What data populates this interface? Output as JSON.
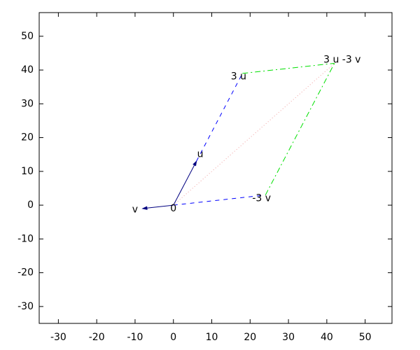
{
  "chart_data": {
    "type": "vector",
    "xlim": [
      -35,
      57
    ],
    "ylim": [
      -35,
      57
    ],
    "xticks": [
      -30,
      -20,
      -10,
      0,
      10,
      20,
      30,
      40,
      50
    ],
    "yticks": [
      -30,
      -20,
      -10,
      0,
      10,
      20,
      30,
      40,
      50
    ],
    "series": [
      {
        "color": "#000080",
        "style": "solid",
        "arrow": true,
        "x": [
          0,
          6
        ],
        "y": [
          0,
          13
        ]
      },
      {
        "color": "#000080",
        "style": "solid",
        "arrow": true,
        "x": [
          0,
          -8
        ],
        "y": [
          0,
          -1
        ]
      },
      {
        "color": "#0000ff",
        "style": "dashed",
        "arrow": false,
        "x": [
          6,
          18
        ],
        "y": [
          13,
          39
        ]
      },
      {
        "color": "#0000ff",
        "style": "dashed",
        "arrow": false,
        "x": [
          0,
          24
        ],
        "y": [
          0,
          3
        ]
      },
      {
        "color": "#00e000",
        "style": "dashdot",
        "arrow": false,
        "x": [
          18,
          42
        ],
        "y": [
          39,
          42
        ]
      },
      {
        "color": "#00e000",
        "style": "dashdot",
        "arrow": false,
        "x": [
          24,
          42
        ],
        "y": [
          3,
          42
        ]
      },
      {
        "color": "#f0a0a0",
        "style": "dotted",
        "arrow": false,
        "x": [
          0,
          42
        ],
        "y": [
          0,
          42
        ]
      }
    ],
    "annotations": [
      {
        "text": "0",
        "x": 0,
        "y": -1
      },
      {
        "text": "u",
        "x": 7,
        "y": 15
      },
      {
        "text": "v",
        "x": -10,
        "y": -1.3
      },
      {
        "text": "3 u",
        "x": 17,
        "y": 38
      },
      {
        "text": "-3 v",
        "x": 23,
        "y": 2
      },
      {
        "text": "3 u -3 v",
        "x": 44,
        "y": 43
      }
    ]
  }
}
